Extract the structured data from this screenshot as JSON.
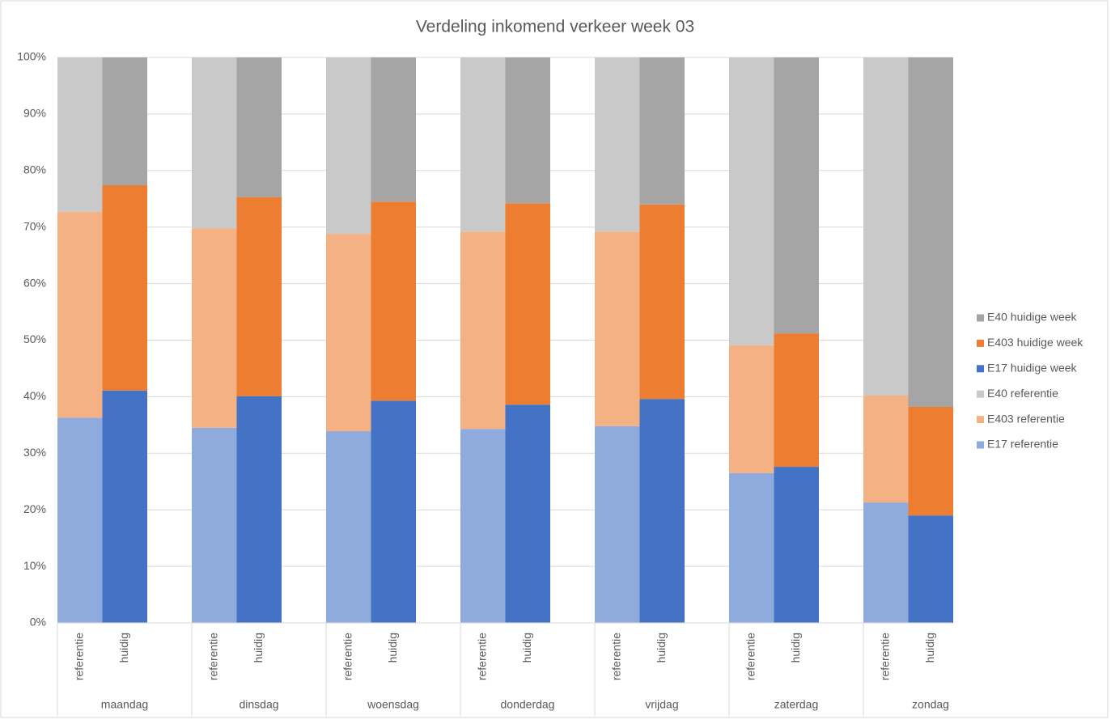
{
  "chart_data": {
    "type": "stacked_bar_100",
    "title": "Verdeling inkomend verkeer week 03",
    "categories": [
      "referentie",
      "huidig",
      "referentie",
      "huidig",
      "referentie",
      "huidig",
      "referentie",
      "huidig",
      "referentie",
      "huidig",
      "referentie",
      "huidig",
      "referentie",
      "huidig"
    ],
    "groups": [
      "maandag",
      "dinsdag",
      "woensdag",
      "donderdag",
      "vrijdag",
      "zaterdag",
      "zondag"
    ],
    "series": [
      {
        "name": "E17 referentie",
        "color": "#8faadc",
        "values": [
          36.3,
          null,
          34.5,
          null,
          33.9,
          null,
          34.3,
          null,
          34.8,
          null,
          26.5,
          null,
          21.3,
          null
        ]
      },
      {
        "name": "E403 referentie",
        "color": "#f4b183",
        "values": [
          36.4,
          null,
          35.3,
          null,
          34.9,
          null,
          34.9,
          null,
          34.4,
          null,
          22.6,
          null,
          18.9,
          null
        ]
      },
      {
        "name": "E40 referentie",
        "color": "#c9c9c9",
        "values": [
          27.3,
          null,
          30.2,
          null,
          31.2,
          null,
          30.8,
          null,
          30.8,
          null,
          50.9,
          null,
          59.8,
          null
        ]
      },
      {
        "name": "E17 huidige week",
        "color": "#4472c4",
        "values": [
          null,
          41.1,
          null,
          40.1,
          null,
          39.3,
          null,
          38.6,
          null,
          39.6,
          null,
          27.6,
          null,
          19.0
        ]
      },
      {
        "name": "E403 huidige week",
        "color": "#ed7d31",
        "values": [
          null,
          36.3,
          null,
          35.2,
          null,
          35.2,
          null,
          35.6,
          null,
          34.4,
          null,
          23.6,
          null,
          19.2
        ]
      },
      {
        "name": "E40 huidige week",
        "color": "#a5a5a5",
        "values": [
          null,
          22.6,
          null,
          24.7,
          null,
          25.5,
          null,
          25.8,
          null,
          26.0,
          null,
          48.8,
          null,
          61.8
        ]
      }
    ],
    "ylim": [
      0,
      100
    ],
    "yticks": [
      {
        "value": 0,
        "label": "0%"
      },
      {
        "value": 10,
        "label": "10%"
      },
      {
        "value": 20,
        "label": "20%"
      },
      {
        "value": 30,
        "label": "30%"
      },
      {
        "value": 40,
        "label": "40%"
      },
      {
        "value": 50,
        "label": "50%"
      },
      {
        "value": 60,
        "label": "60%"
      },
      {
        "value": 70,
        "label": "70%"
      },
      {
        "value": 80,
        "label": "80%"
      },
      {
        "value": 90,
        "label": "90%"
      },
      {
        "value": 100,
        "label": "100%"
      }
    ],
    "grid": true,
    "legend": "right"
  }
}
